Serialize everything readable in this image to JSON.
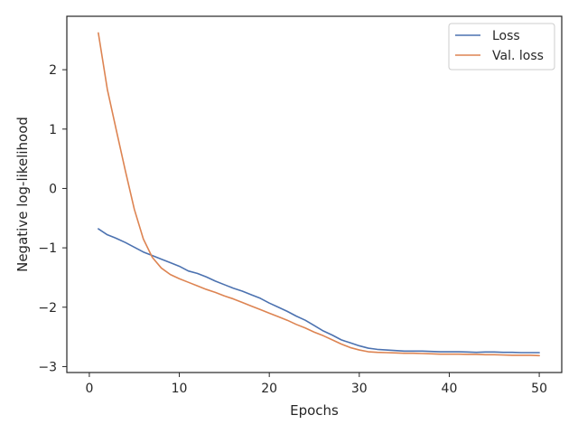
{
  "chart_data": {
    "type": "line",
    "title": "",
    "xlabel": "Epochs",
    "ylabel": "Negative log-likelihood",
    "xlim": [
      -2.5,
      52.5
    ],
    "ylim": [
      -3.1,
      2.9
    ],
    "xticks": [
      0,
      10,
      20,
      30,
      40,
      50
    ],
    "yticks": [
      -3,
      -2,
      -1,
      0,
      1,
      2
    ],
    "xtick_labels": [
      "0",
      "10",
      "20",
      "30",
      "40",
      "50"
    ],
    "ytick_labels": [
      "−3",
      "−2",
      "−1",
      "0",
      "1",
      "2"
    ],
    "grid": false,
    "legend_position": "top-right",
    "x": [
      1,
      2,
      3,
      4,
      5,
      6,
      7,
      8,
      9,
      10,
      11,
      12,
      13,
      14,
      15,
      16,
      17,
      18,
      19,
      20,
      21,
      22,
      23,
      24,
      25,
      26,
      27,
      28,
      29,
      30,
      31,
      32,
      33,
      34,
      35,
      36,
      37,
      38,
      39,
      40,
      41,
      42,
      43,
      44,
      45,
      46,
      47,
      48,
      49,
      50
    ],
    "series": [
      {
        "name": "Loss",
        "color": "#4c72b0",
        "values": [
          -0.68,
          -0.78,
          -0.84,
          -0.91,
          -0.99,
          -1.07,
          -1.13,
          -1.19,
          -1.25,
          -1.31,
          -1.39,
          -1.43,
          -1.49,
          -1.56,
          -1.62,
          -1.68,
          -1.73,
          -1.79,
          -1.85,
          -1.93,
          -2.0,
          -2.07,
          -2.15,
          -2.22,
          -2.31,
          -2.4,
          -2.47,
          -2.55,
          -2.6,
          -2.65,
          -2.69,
          -2.71,
          -2.72,
          -2.73,
          -2.74,
          -2.74,
          -2.74,
          -2.745,
          -2.75,
          -2.75,
          -2.75,
          -2.755,
          -2.76,
          -2.755,
          -2.755,
          -2.76,
          -2.76,
          -2.765,
          -2.765,
          -2.765
        ]
      },
      {
        "name": "Val. loss",
        "color": "#dd8452",
        "values": [
          2.62,
          1.67,
          0.98,
          0.3,
          -0.35,
          -0.85,
          -1.16,
          -1.34,
          -1.45,
          -1.52,
          -1.58,
          -1.64,
          -1.7,
          -1.75,
          -1.81,
          -1.86,
          -1.92,
          -1.98,
          -2.04,
          -2.1,
          -2.16,
          -2.22,
          -2.29,
          -2.35,
          -2.42,
          -2.48,
          -2.55,
          -2.62,
          -2.68,
          -2.72,
          -2.75,
          -2.76,
          -2.765,
          -2.77,
          -2.775,
          -2.775,
          -2.78,
          -2.785,
          -2.79,
          -2.79,
          -2.79,
          -2.795,
          -2.795,
          -2.8,
          -2.8,
          -2.805,
          -2.81,
          -2.81,
          -2.81,
          -2.815
        ]
      }
    ]
  }
}
